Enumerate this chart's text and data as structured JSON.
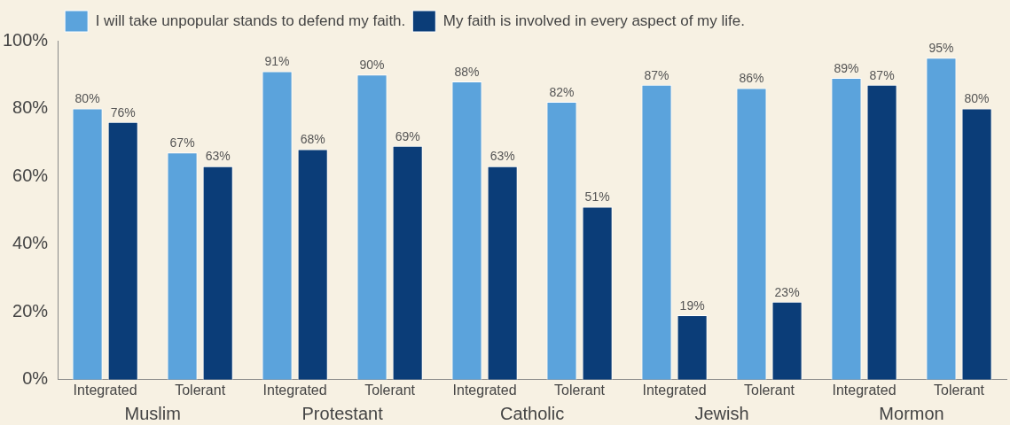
{
  "chart_data": {
    "type": "bar",
    "categories": [
      "Integrated",
      "Tolerant",
      "Integrated",
      "Tolerant",
      "Integrated",
      "Tolerant",
      "Integrated",
      "Tolerant",
      "Integrated",
      "Tolerant"
    ],
    "series": [
      {
        "name": "I will take unpopular stands to defend my faith.",
        "color": "#5ba3dc",
        "values": [
          80,
          67,
          91,
          90,
          88,
          82,
          87,
          86,
          89,
          95
        ],
        "value_labels": [
          "80%",
          "67%",
          "91%",
          "90%",
          "88%",
          "82%",
          "87%",
          "86%",
          "89%",
          "95%"
        ]
      },
      {
        "name": "My faith is involved in every aspect of my life.",
        "color": "#0b3d78",
        "values": [
          76,
          63,
          68,
          69,
          63,
          51,
          19,
          23,
          87,
          80
        ],
        "value_labels": [
          "76%",
          "63%",
          "68%",
          "69%",
          "63%",
          "51%",
          "19%",
          "23%",
          "87%",
          "80%"
        ]
      }
    ],
    "annotations": [
      "Muslim",
      "Protestant",
      "Catholic",
      "Jewish",
      "Mormon"
    ],
    "ylim": [
      0,
      100
    ],
    "yticks": [
      {
        "value": 0,
        "label": "0%"
      },
      {
        "value": 20,
        "label": "20%"
      },
      {
        "value": 40,
        "label": "40%"
      },
      {
        "value": 60,
        "label": "60%"
      },
      {
        "value": 80,
        "label": "80%"
      },
      {
        "value": 100,
        "label": "100%"
      }
    ],
    "grid": false,
    "legend": "top left"
  }
}
